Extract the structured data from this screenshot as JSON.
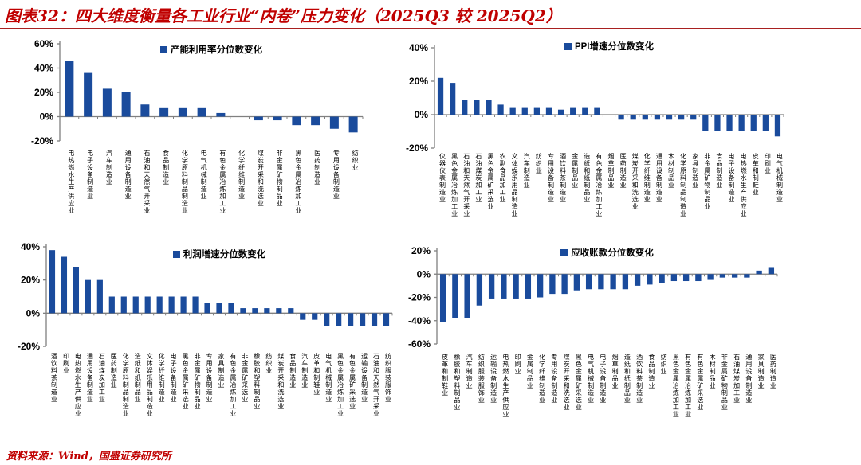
{
  "title": "图表32：四大维度衡量各工业行业“内卷”压力变化（2025Q3 较 2025Q2）",
  "source": "资料来源：Wind，国盛证券研究所",
  "colors": {
    "bar": "#1a4b9c",
    "accent_red": "#c00000",
    "axis_gray": "#808080"
  },
  "chart_data": [
    {
      "type": "bar",
      "legend": "产能利用率分位数变化",
      "ylim": [
        -20,
        60
      ],
      "yticks": [
        "60%",
        "40%",
        "20%",
        "0%",
        "-20%"
      ],
      "categories": [
        "电热燃水生产供应业",
        "电子设备制造业",
        "汽车制造业",
        "通用设备制造业",
        "石油和天然气开采业",
        "食品制造业",
        "化学原料制品制造业",
        "电气机械制造业",
        "有色金属冶炼加工业",
        "化学纤维制造业",
        "煤炭开采和洗选业",
        "非金属矿物制品业",
        "黑色金属冶炼加工业",
        "医药制造业",
        "专用设备制造业",
        "纺织业"
      ],
      "values": [
        46,
        36,
        23,
        20,
        10,
        7,
        7,
        7,
        3,
        0,
        -3,
        -3,
        -7,
        -7,
        -10,
        -13
      ]
    },
    {
      "type": "bar",
      "legend": "PPI增速分位数变化",
      "ylim": [
        -20,
        40
      ],
      "yticks": [
        "40%",
        "20%",
        "0%",
        "-20%"
      ],
      "categories": [
        "仪器仪表制造业",
        "黑色金属冶炼加工业",
        "石油和天然气开采业",
        "石油煤炭加工业",
        "黑色金属矿采选业",
        "农副食品加工业",
        "文体娱乐用品制造业",
        "汽车制造业",
        "纺织业",
        "专用设备制造业",
        "酒饮料茶制造业",
        "金属制品业",
        "造纸和纸制品业",
        "有色金属冶炼加工业",
        "烟草制品业",
        "医药制造业",
        "煤炭开采和洗选业",
        "化学纤维制造业",
        "通用设备制造业",
        "木材制品业",
        "化学原料制品制造业",
        "家具制造业",
        "非金属矿物制品业",
        "食品制造业",
        "电子设备制造业",
        "电热燃水生产供应业",
        "皮革和制鞋业",
        "印刷业",
        "电气机械制造业"
      ],
      "values": [
        22,
        19,
        9,
        9,
        9,
        6,
        4,
        4,
        4,
        4,
        3,
        4,
        4,
        4,
        0,
        -3,
        -3,
        -3,
        -3,
        -3,
        -3,
        -3,
        -10,
        -10,
        -10,
        -10,
        -10,
        -10,
        -13
      ]
    },
    {
      "type": "bar",
      "legend": "利润增速分位数变化",
      "ylim": [
        -20,
        40
      ],
      "yticks": [
        "40%",
        "20%",
        "0%",
        "-20%"
      ],
      "categories": [
        "酒饮料茶制造业",
        "印刷业",
        "电热燃水生产供应业",
        "通用设备制造业",
        "石油煤炭加工业",
        "医药制造业",
        "化学原料制品制造业",
        "造纸和纸制品业",
        "文体娱乐用品制造业",
        "化学纤维制造业",
        "电子设备制造业",
        "黑色金属矿采选业",
        "非金属矿物制品业",
        "专用设备制造业",
        "家具制造业",
        "有色金属冶炼加工业",
        "非金属矿采选业",
        "橡胶和塑料制品业",
        "纺织业",
        "煤炭开采和洗选业",
        "食品制造业",
        "汽车制造业",
        "皮革和制鞋业",
        "电气机械制造业",
        "黑色金属冶炼加工业",
        "有色金属矿采选业",
        "运输设备制造业",
        "石油和天然气开采业",
        "纺织服装服饰业"
      ],
      "values": [
        38,
        34,
        28,
        20,
        20,
        10,
        10,
        10,
        10,
        10,
        10,
        10,
        10,
        6,
        6,
        6,
        3,
        3,
        3,
        3,
        3,
        -4,
        -4,
        -8,
        -8,
        -8,
        -8,
        -8,
        -8
      ]
    },
    {
      "type": "bar",
      "legend": "应收账款分位数变化",
      "ylim": [
        -60,
        20
      ],
      "yticks": [
        "20%",
        "0%",
        "-20%",
        "-40%",
        "-60%"
      ],
      "categories": [
        "皮革和制鞋业",
        "橡胶和塑料制品业",
        "汽车制造业",
        "纺织服装服饰业",
        "运输设备制造业",
        "电热燃水生产供应业",
        "印刷业",
        "金属制品业",
        "化学纤维制造业",
        "专用设备制造业",
        "煤炭开采和洗选业",
        "黑色金属矿采选业",
        "电气机械制造业",
        "电子设备制造业",
        "烟草制品业",
        "造纸和纸制品业",
        "酒饮料茶制造业",
        "食品制造业",
        "纺织业",
        "黑色金属冶炼加工业",
        "有色金属冶炼加工业",
        "有色金属矿采选业",
        "木材制品业",
        "非金属矿物制品业",
        "石油煤炭加工业",
        "通用设备制造业",
        "家具制造业",
        "医药制造业"
      ],
      "values": [
        -41,
        -38,
        -38,
        -27,
        -21,
        -21,
        -21,
        -21,
        -20,
        -17,
        -17,
        -14,
        -13,
        -13,
        -13,
        -13,
        -10,
        -9,
        -8,
        -6,
        -6,
        -6,
        -5,
        -3,
        -3,
        -3,
        3,
        6
      ]
    }
  ]
}
